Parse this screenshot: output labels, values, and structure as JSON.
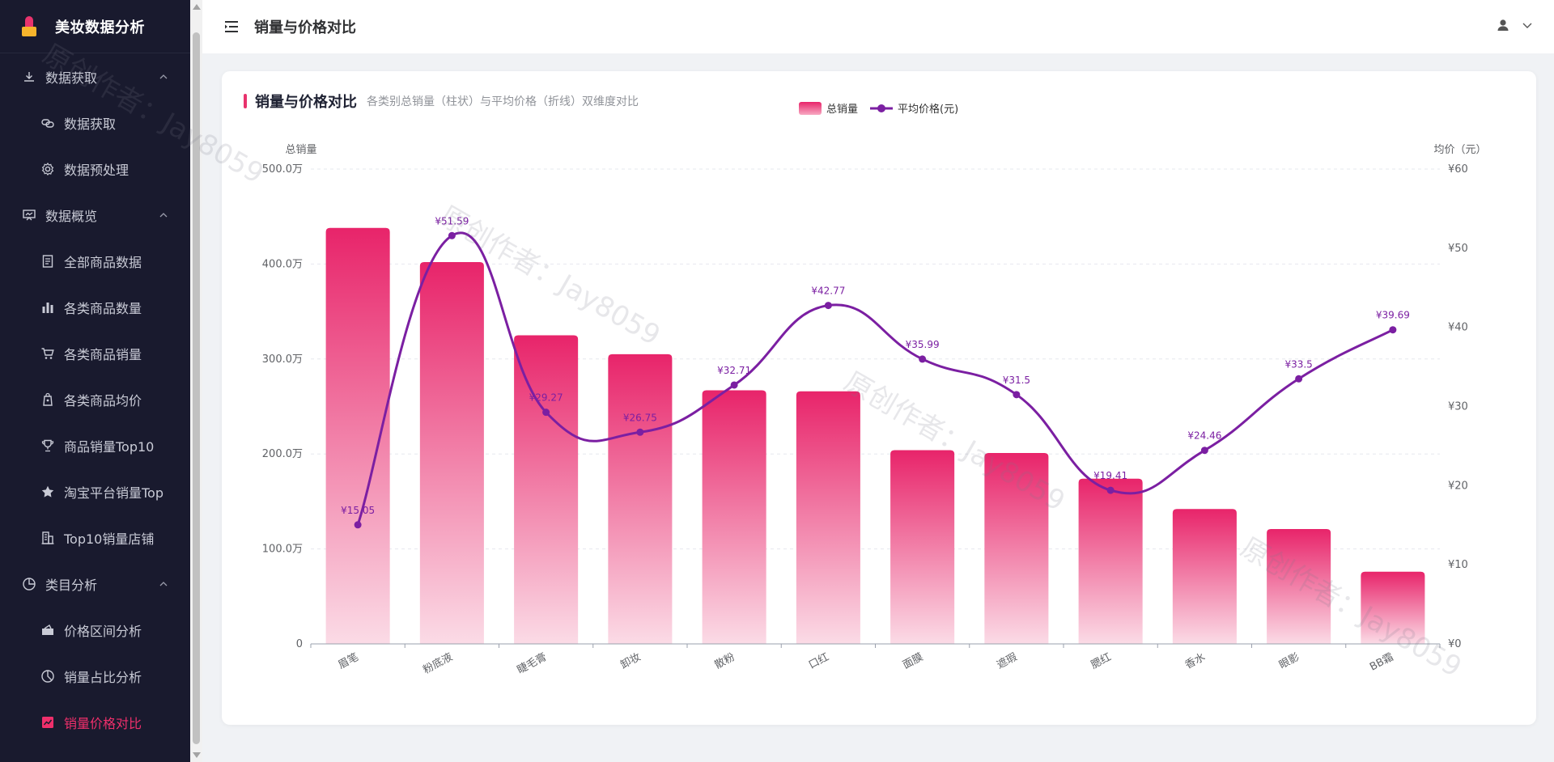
{
  "app": {
    "title": "美妆数据分析"
  },
  "sidebar": {
    "groups": [
      {
        "label": "数据获取",
        "icon": "download-icon",
        "items": [
          {
            "label": "数据获取",
            "icon": "link-icon"
          },
          {
            "label": "数据预处理",
            "icon": "gear-icon"
          }
        ]
      },
      {
        "label": "数据概览",
        "icon": "presentation-icon",
        "items": [
          {
            "label": "全部商品数据",
            "icon": "document-icon"
          },
          {
            "label": "各类商品数量",
            "icon": "bar-chart-icon"
          },
          {
            "label": "各类商品销量",
            "icon": "cart-icon"
          },
          {
            "label": "各类商品均价",
            "icon": "price-tag-icon"
          },
          {
            "label": "商品销量Top10",
            "icon": "trophy-icon"
          },
          {
            "label": "淘宝平台销量Top",
            "icon": "star-icon"
          },
          {
            "label": "Top10销量店铺",
            "icon": "building-icon"
          }
        ]
      },
      {
        "label": "类目分析",
        "icon": "pie-chart-icon",
        "items": [
          {
            "label": "价格区间分析",
            "icon": "coupon-icon"
          },
          {
            "label": "销量占比分析",
            "icon": "pie-chart-icon"
          },
          {
            "label": "销量价格对比",
            "icon": "line-chart-icon",
            "active": true
          }
        ]
      }
    ]
  },
  "header": {
    "title": "销量与价格对比"
  },
  "card": {
    "title": "销量与价格对比",
    "subtitle": "各类别总销量（柱状）与平均价格（折线）双维度对比"
  },
  "watermark": "原创作者：Jay8059",
  "colors": {
    "accent": "#e8336d",
    "bar_top": "#e8246a",
    "line": "#7b1fa2",
    "sidebar_bg": "#191a2e"
  },
  "chart_data": {
    "type": "bar",
    "categories": [
      "眉笔",
      "粉底液",
      "睫毛膏",
      "卸妆",
      "散粉",
      "口红",
      "面膜",
      "遮瑕",
      "腮红",
      "香水",
      "眼影",
      "BB霜"
    ],
    "legend": [
      "总销量",
      "平均价格(元)"
    ],
    "legend_position": "top-center",
    "y_left": {
      "label": "总销量",
      "ticks": [
        "0",
        "100.0万",
        "200.0万",
        "300.0万",
        "400.0万",
        "500.0万"
      ],
      "min": 0,
      "max": 5000000
    },
    "y_right": {
      "label": "均价（元）",
      "ticks": [
        "¥0",
        "¥10",
        "¥20",
        "¥30",
        "¥40",
        "¥50",
        "¥60"
      ],
      "min": 0,
      "max": 60
    },
    "series": [
      {
        "name": "总销量",
        "type": "bar",
        "axis": "left",
        "values": [
          4380000,
          4020000,
          3250000,
          3050000,
          2670000,
          2660000,
          2040000,
          2010000,
          1740000,
          1420000,
          1210000,
          760000
        ]
      },
      {
        "name": "平均价格(元)",
        "type": "line",
        "axis": "right",
        "smooth": true,
        "values": [
          15.05,
          51.59,
          29.27,
          26.75,
          32.71,
          42.77,
          35.99,
          31.5,
          19.41,
          24.46,
          33.5,
          39.69
        ],
        "labels": [
          "¥15.05",
          "¥51.59",
          "¥29.27",
          "¥26.75",
          "¥32.71",
          "¥42.77",
          "¥35.99",
          "¥31.5",
          "¥19.41",
          "¥24.46",
          "¥33.5",
          "¥39.69"
        ]
      }
    ],
    "grid": "horizontal-dashed"
  }
}
